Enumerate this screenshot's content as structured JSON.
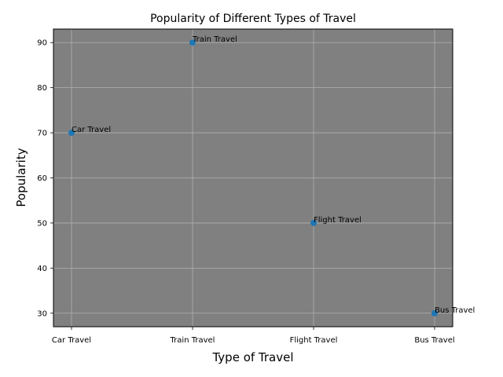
{
  "chart_data": {
    "type": "scatter",
    "title": "Popularity of Different Types of Travel",
    "xlabel": "Type of Travel",
    "ylabel": "Popularity",
    "categories": [
      "Car Travel",
      "Train Travel",
      "Flight Travel",
      "Bus Travel"
    ],
    "values": [
      70,
      90,
      50,
      30
    ],
    "point_labels": [
      "Car Travel",
      "Train Travel",
      "Flight Travel",
      "Bus Travel"
    ],
    "y_ticks": [
      30,
      40,
      50,
      60,
      70,
      80,
      90
    ],
    "ylim": [
      27,
      93
    ],
    "grid": true,
    "legend": false
  },
  "colors": {
    "plot_background": "#808080",
    "marker": "#1f77b4",
    "grid": "#b0b0b0",
    "axis": "#000000"
  }
}
